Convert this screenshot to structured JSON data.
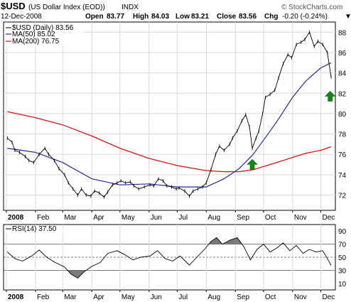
{
  "header": {
    "symbol": "$USD",
    "name": "(US Dollar Index (EOD))",
    "exchange": "INDX",
    "watermark": "© StockCharts.com",
    "date": "12-Dec-2008",
    "open_label": "Open",
    "open": "83.77",
    "high_label": "High",
    "high": "84.03",
    "low_label": "Low",
    "low": "83.21",
    "close_label": "Close",
    "close": "83.56",
    "chg_label": "Chg",
    "chg": "-0.20 (-0.24%)",
    "direction_glyph": "▼"
  },
  "legend": {
    "price": "$USD (Daily) 83.56",
    "ma50": "MA(50) 85.02",
    "ma200": "MA(200) 76.75",
    "rsi": "RSI(14) 37.50"
  },
  "colors": {
    "price": "#000000",
    "ma50": "#2b2b9a",
    "ma200": "#d41515",
    "arrow": "#0e8a0e",
    "grid": "#d8d8d8",
    "rsi_fill": "#7a7a7a"
  },
  "chart_data": [
    {
      "type": "line",
      "title": "$USD (Daily) 83.56",
      "x_type": "date",
      "x_start": "2008-01-01",
      "x_end": "2008-12-12",
      "xticks": [
        {
          "label": "2008",
          "date": "2008-01-01",
          "bold": true
        },
        {
          "label": "Feb",
          "date": "2008-02-01"
        },
        {
          "label": "Mar",
          "date": "2008-03-01"
        },
        {
          "label": "Apr",
          "date": "2008-04-01"
        },
        {
          "label": "May",
          "date": "2008-05-01"
        },
        {
          "label": "Jun",
          "date": "2008-06-01"
        },
        {
          "label": "Jul",
          "date": "2008-07-01"
        },
        {
          "label": "Aug",
          "date": "2008-08-01"
        },
        {
          "label": "Sep",
          "date": "2008-09-01"
        },
        {
          "label": "Oct",
          "date": "2008-10-01"
        },
        {
          "label": "Nov",
          "date": "2008-11-01"
        },
        {
          "label": "Dec",
          "date": "2008-12-01"
        }
      ],
      "ylim": [
        70.5,
        89
      ],
      "yticks": [
        72,
        74,
        76,
        78,
        80,
        82,
        84,
        86,
        88
      ],
      "grid": true,
      "series": [
        {
          "name": "$USD (Daily) 83.56",
          "x": [
            "2008-01-02",
            "2008-01-07",
            "2008-01-10",
            "2008-01-15",
            "2008-01-21",
            "2008-01-25",
            "2008-01-30",
            "2008-02-05",
            "2008-02-11",
            "2008-02-15",
            "2008-02-21",
            "2008-02-26",
            "2008-03-03",
            "2008-03-07",
            "2008-03-12",
            "2008-03-17",
            "2008-03-21",
            "2008-03-26",
            "2008-03-31",
            "2008-04-04",
            "2008-04-09",
            "2008-04-14",
            "2008-04-18",
            "2008-04-23",
            "2008-04-28",
            "2008-05-02",
            "2008-05-07",
            "2008-05-12",
            "2008-05-16",
            "2008-05-21",
            "2008-05-27",
            "2008-06-02",
            "2008-06-06",
            "2008-06-11",
            "2008-06-16",
            "2008-06-20",
            "2008-06-25",
            "2008-06-30",
            "2008-07-03",
            "2008-07-09",
            "2008-07-14",
            "2008-07-18",
            "2008-07-23",
            "2008-07-28",
            "2008-08-01",
            "2008-08-06",
            "2008-08-11",
            "2008-08-15",
            "2008-08-20",
            "2008-08-26",
            "2008-08-29",
            "2008-09-03",
            "2008-09-08",
            "2008-09-12",
            "2008-09-16",
            "2008-09-19",
            "2008-09-23",
            "2008-09-26",
            "2008-09-30",
            "2008-10-03",
            "2008-10-08",
            "2008-10-13",
            "2008-10-17",
            "2008-10-22",
            "2008-10-27",
            "2008-10-31",
            "2008-11-05",
            "2008-11-10",
            "2008-11-14",
            "2008-11-19",
            "2008-11-24",
            "2008-11-28",
            "2008-12-03",
            "2008-12-08",
            "2008-12-12"
          ],
          "y": [
            77.6,
            77.2,
            76.4,
            76.2,
            75.8,
            75.4,
            75.2,
            76.0,
            76.6,
            76.0,
            75.4,
            74.6,
            74.0,
            73.2,
            72.6,
            72.0,
            72.6,
            72.0,
            71.9,
            72.4,
            72.2,
            71.8,
            72.3,
            73.0,
            73.2,
            73.4,
            73.2,
            73.3,
            72.9,
            72.6,
            72.8,
            73.0,
            72.9,
            73.6,
            73.4,
            72.9,
            72.8,
            72.6,
            72.7,
            72.4,
            71.9,
            72.4,
            72.6,
            72.8,
            73.2,
            74.5,
            76.0,
            76.8,
            76.4,
            77.0,
            77.6,
            78.3,
            79.3,
            79.9,
            78.7,
            76.6,
            77.6,
            78.3,
            80.0,
            81.6,
            81.9,
            82.3,
            83.5,
            84.9,
            85.8,
            85.5,
            86.8,
            87.0,
            87.3,
            88.0,
            86.6,
            87.1,
            86.8,
            86.0,
            83.6
          ]
        },
        {
          "name": "MA(50) 85.02",
          "x": [
            "2008-01-02",
            "2008-02-01",
            "2008-03-01",
            "2008-04-01",
            "2008-05-01",
            "2008-06-01",
            "2008-07-01",
            "2008-08-01",
            "2008-08-20",
            "2008-09-05",
            "2008-09-20",
            "2008-10-01",
            "2008-10-15",
            "2008-11-01",
            "2008-11-15",
            "2008-12-01",
            "2008-12-12"
          ],
          "y": [
            76.6,
            76.2,
            75.2,
            73.6,
            73.0,
            73.1,
            72.8,
            72.8,
            73.6,
            74.6,
            76.0,
            77.4,
            79.2,
            81.6,
            83.2,
            84.5,
            85.0
          ]
        },
        {
          "name": "MA(200) 76.75",
          "x": [
            "2008-01-02",
            "2008-02-01",
            "2008-03-01",
            "2008-04-01",
            "2008-05-01",
            "2008-06-01",
            "2008-07-01",
            "2008-08-01",
            "2008-08-20",
            "2008-09-05",
            "2008-09-20",
            "2008-10-01",
            "2008-10-15",
            "2008-11-01",
            "2008-11-15",
            "2008-12-01",
            "2008-12-12"
          ],
          "y": [
            80.2,
            79.6,
            78.9,
            77.8,
            76.6,
            75.6,
            74.9,
            74.4,
            74.3,
            74.3,
            74.5,
            74.8,
            75.2,
            75.7,
            76.1,
            76.4,
            76.75
          ]
        }
      ],
      "annotations": [
        {
          "type": "arrow-up",
          "date": "2008-09-19",
          "value": 75.5
        },
        {
          "type": "arrow-up",
          "date": "2008-12-11",
          "value": 82.2
        }
      ]
    },
    {
      "type": "line",
      "title": "RSI(14) 37.50",
      "x_type": "date",
      "x_start": "2008-01-01",
      "x_end": "2008-12-12",
      "xticks": [
        {
          "label": "2008",
          "date": "2008-01-01",
          "bold": true
        },
        {
          "label": "Feb",
          "date": "2008-02-01"
        },
        {
          "label": "Mar",
          "date": "2008-03-01"
        },
        {
          "label": "Apr",
          "date": "2008-04-01"
        },
        {
          "label": "May",
          "date": "2008-05-01"
        },
        {
          "label": "Jun",
          "date": "2008-06-01"
        },
        {
          "label": "Jul",
          "date": "2008-07-01"
        },
        {
          "label": "Aug",
          "date": "2008-08-01"
        },
        {
          "label": "Sep",
          "date": "2008-09-01"
        },
        {
          "label": "Oct",
          "date": "2008-10-01"
        },
        {
          "label": "Nov",
          "date": "2008-11-01"
        },
        {
          "label": "Dec",
          "date": "2008-12-01"
        }
      ],
      "ylim": [
        0,
        100
      ],
      "yticks": [
        10,
        30,
        50,
        70,
        90
      ],
      "reference_lines": [
        30,
        70
      ],
      "series": [
        {
          "name": "RSI(14) 37.50",
          "x": [
            "2008-01-02",
            "2008-01-10",
            "2008-01-18",
            "2008-01-28",
            "2008-02-05",
            "2008-02-13",
            "2008-02-22",
            "2008-03-03",
            "2008-03-10",
            "2008-03-17",
            "2008-03-24",
            "2008-04-01",
            "2008-04-10",
            "2008-04-18",
            "2008-04-28",
            "2008-05-06",
            "2008-05-15",
            "2008-05-23",
            "2008-06-02",
            "2008-06-10",
            "2008-06-18",
            "2008-06-26",
            "2008-07-04",
            "2008-07-14",
            "2008-07-22",
            "2008-07-30",
            "2008-08-06",
            "2008-08-12",
            "2008-08-18",
            "2008-08-26",
            "2008-09-03",
            "2008-09-10",
            "2008-09-17",
            "2008-09-24",
            "2008-10-01",
            "2008-10-08",
            "2008-10-15",
            "2008-10-22",
            "2008-10-29",
            "2008-11-05",
            "2008-11-12",
            "2008-11-19",
            "2008-11-26",
            "2008-12-03",
            "2008-12-08",
            "2008-12-12"
          ],
          "y": [
            58,
            48,
            44,
            52,
            61,
            50,
            42,
            35,
            24,
            18,
            28,
            36,
            42,
            56,
            60,
            54,
            46,
            50,
            52,
            60,
            48,
            44,
            52,
            38,
            50,
            62,
            74,
            80,
            70,
            76,
            80,
            66,
            46,
            62,
            70,
            58,
            64,
            72,
            60,
            68,
            56,
            62,
            58,
            60,
            48,
            37.5
          ]
        }
      ]
    }
  ]
}
